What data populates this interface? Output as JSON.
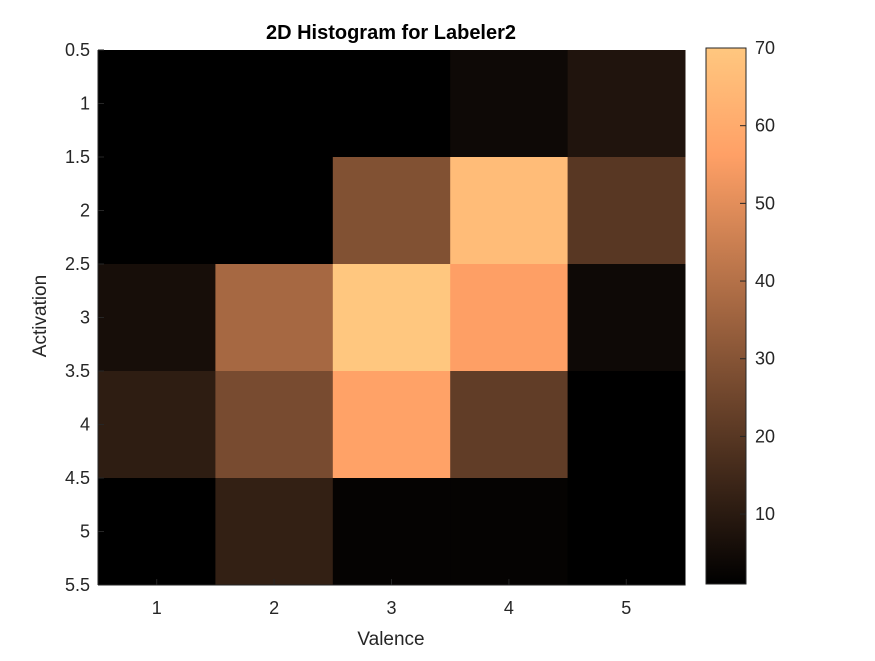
{
  "chart_data": {
    "type": "heatmap",
    "title": "2D Histogram for Labeler2",
    "xlabel": "Valence",
    "ylabel": "Activation",
    "x_categories": [
      1,
      2,
      3,
      4,
      5
    ],
    "y_categories": [
      1,
      2,
      3,
      4,
      5
    ],
    "x_ticks": [
      "1",
      "2",
      "3",
      "4",
      "5"
    ],
    "y_ticks": [
      "0.5",
      "1",
      "1.5",
      "2",
      "2.5",
      "3",
      "3.5",
      "4",
      "4.5",
      "5",
      "5.5"
    ],
    "xlim": [
      0.5,
      5.5
    ],
    "ylim": [
      0.5,
      5.5
    ],
    "y_reversed": true,
    "grid": false,
    "colormap": "copper",
    "color_range": [
      1,
      70
    ],
    "colorbar_ticks": [
      "10",
      "20",
      "30",
      "40",
      "50",
      "60",
      "70"
    ],
    "colorbar_tick_values": [
      10,
      20,
      30,
      40,
      50,
      60,
      70
    ],
    "values": [
      [
        1,
        1,
        1,
        4,
        8
      ],
      [
        1,
        1,
        29,
        66,
        20
      ],
      [
        6,
        37,
        71,
        56,
        4
      ],
      [
        11,
        27,
        57,
        22,
        1
      ],
      [
        1,
        12,
        2,
        2,
        1
      ]
    ]
  }
}
